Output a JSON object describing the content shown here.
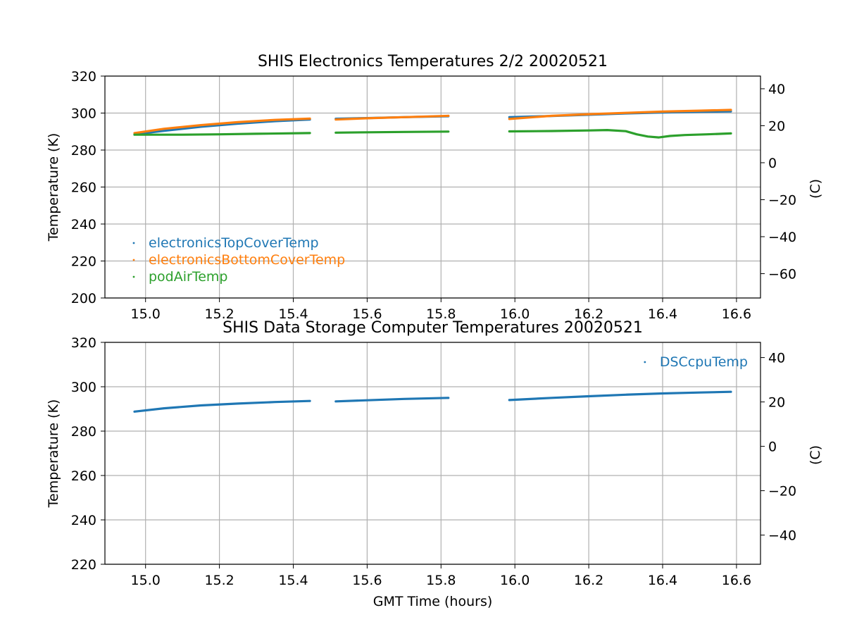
{
  "chart_data": [
    {
      "type": "scatter",
      "title": "SHIS Electronics Temperatures 2/2 20020521",
      "xlabel": "",
      "ylabel": "Temperature (K)",
      "y2label": "(C)",
      "xlim": [
        14.89,
        16.665
      ],
      "ylim": [
        200,
        320
      ],
      "y2lim": [
        -73.15,
        46.85
      ],
      "x_ticks": [
        "15.0",
        "15.2",
        "15.4",
        "15.6",
        "15.8",
        "16.0",
        "16.2",
        "16.4",
        "16.6"
      ],
      "y_ticks": [
        "200",
        "220",
        "240",
        "260",
        "280",
        "300",
        "320"
      ],
      "y2_ticks": [
        "−60",
        "−40",
        "−20",
        "0",
        "20",
        "40"
      ],
      "grid": true,
      "legend_position": "lower-left",
      "series": [
        {
          "name": "electronicsTopCoverTemp",
          "color": "#1f77b4",
          "segments": [
            [
              [
                14.97,
                288.5
              ],
              [
                15.05,
                290.4
              ],
              [
                15.15,
                292.6
              ],
              [
                15.25,
                294.3
              ],
              [
                15.35,
                295.6
              ],
              [
                15.445,
                296.5
              ]
            ],
            [
              [
                15.515,
                296.9
              ],
              [
                15.6,
                297.3
              ],
              [
                15.7,
                297.8
              ],
              [
                15.82,
                298.3
              ]
            ],
            [
              [
                15.985,
                297.8
              ],
              [
                16.1,
                298.4
              ],
              [
                16.2,
                299.1
              ],
              [
                16.3,
                299.8
              ],
              [
                16.4,
                300.3
              ],
              [
                16.5,
                300.7
              ],
              [
                16.585,
                300.9
              ]
            ]
          ]
        },
        {
          "name": "electronicsBottomCoverTemp",
          "color": "#ff7f0e",
          "segments": [
            [
              [
                14.97,
                289.2
              ],
              [
                15.05,
                291.5
              ],
              [
                15.15,
                293.5
              ],
              [
                15.25,
                295.1
              ],
              [
                15.35,
                296.3
              ],
              [
                15.445,
                297.0
              ]
            ],
            [
              [
                15.515,
                296.5
              ],
              [
                15.6,
                297.2
              ],
              [
                15.7,
                297.8
              ],
              [
                15.82,
                298.5
              ]
            ],
            [
              [
                15.985,
                296.8
              ],
              [
                16.1,
                298.5
              ],
              [
                16.2,
                299.4
              ],
              [
                16.3,
                300.1
              ],
              [
                16.4,
                300.8
              ],
              [
                16.5,
                301.3
              ],
              [
                16.585,
                301.7
              ]
            ]
          ]
        },
        {
          "name": "podAirTemp",
          "color": "#2ca02c",
          "segments": [
            [
              [
                14.97,
                288.3
              ],
              [
                15.1,
                288.3
              ],
              [
                15.2,
                288.5
              ],
              [
                15.3,
                288.8
              ],
              [
                15.445,
                289.2
              ]
            ],
            [
              [
                15.515,
                289.4
              ],
              [
                15.6,
                289.6
              ],
              [
                15.7,
                289.8
              ],
              [
                15.82,
                290.0
              ]
            ],
            [
              [
                15.985,
                290.1
              ],
              [
                16.1,
                290.3
              ],
              [
                16.2,
                290.6
              ],
              [
                16.25,
                290.8
              ],
              [
                16.3,
                290.2
              ],
              [
                16.33,
                288.5
              ],
              [
                16.36,
                287.3
              ],
              [
                16.39,
                286.8
              ],
              [
                16.42,
                287.6
              ],
              [
                16.46,
                288.1
              ],
              [
                16.52,
                288.5
              ],
              [
                16.585,
                289.0
              ]
            ]
          ]
        }
      ]
    },
    {
      "type": "scatter",
      "title": "SHIS Data Storage Computer Temperatures 20020521",
      "xlabel": "GMT Time (hours)",
      "ylabel": "Temperature (K)",
      "y2label": "(C)",
      "xlim": [
        14.89,
        16.665
      ],
      "ylim": [
        220,
        320
      ],
      "y2lim": [
        -53.15,
        46.85
      ],
      "x_ticks": [
        "15.0",
        "15.2",
        "15.4",
        "15.6",
        "15.8",
        "16.0",
        "16.2",
        "16.4",
        "16.6"
      ],
      "y_ticks": [
        "220",
        "240",
        "260",
        "280",
        "300",
        "320"
      ],
      "y2_ticks": [
        "−40",
        "−20",
        "0",
        "20",
        "40"
      ],
      "grid": true,
      "legend_position": "top-right",
      "series": [
        {
          "name": "DSCcpuTemp",
          "color": "#1f77b4",
          "segments": [
            [
              [
                14.97,
                288.8
              ],
              [
                15.05,
                290.3
              ],
              [
                15.15,
                291.6
              ],
              [
                15.25,
                292.4
              ],
              [
                15.35,
                293.1
              ],
              [
                15.445,
                293.6
              ]
            ],
            [
              [
                15.515,
                293.4
              ],
              [
                15.6,
                293.9
              ],
              [
                15.7,
                294.5
              ],
              [
                15.82,
                295.0
              ]
            ],
            [
              [
                15.985,
                294.0
              ],
              [
                16.1,
                295.0
              ],
              [
                16.2,
                295.7
              ],
              [
                16.3,
                296.4
              ],
              [
                16.4,
                297.0
              ],
              [
                16.5,
                297.4
              ],
              [
                16.585,
                297.7
              ]
            ]
          ]
        }
      ]
    }
  ]
}
